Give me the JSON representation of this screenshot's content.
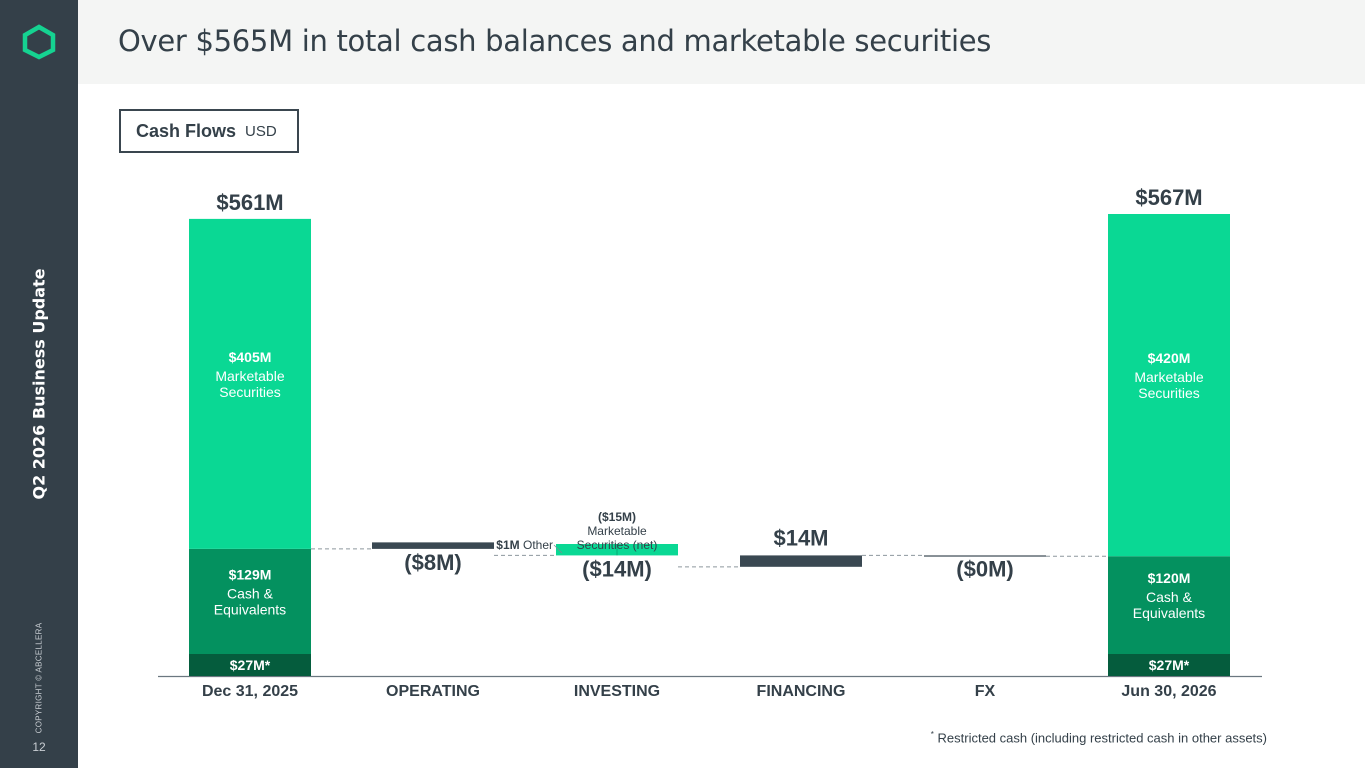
{
  "slide": {
    "title": "Over $565M in total cash balances and marketable securities",
    "sidebar_title": "Q2 2026 Business Update",
    "copyright": "COPYRIGHT © ABCELLERA",
    "page_number": "12",
    "footnote_mark": "*",
    "footnote": "Restricted cash (including restricted cash in other assets)"
  },
  "legend": {
    "label": "Cash Flows",
    "unit": "USD"
  },
  "colors": {
    "sidebar": "#344049",
    "header_bg": "#f4f5f4",
    "marketable": "#0ad894",
    "cash": "#04915f",
    "restricted": "#055c3d",
    "negative": "#3a4852",
    "logo": "#15d391",
    "text": "#344049"
  },
  "chart_data": {
    "type": "bar",
    "subtype": "waterfall",
    "title": "Cash Flows",
    "unit": "USD",
    "categories": [
      "Dec 31, 2025",
      "OPERATING",
      "INVESTING",
      "FINANCING",
      "FX",
      "Jun 30, 2026"
    ],
    "ylim": [
      0,
      600
    ],
    "totals": [
      {
        "category": "Dec 31, 2025",
        "total_label": "$561M",
        "total": 561,
        "segments": [
          {
            "name": "Restricted cash",
            "value": 27,
            "label": "$27M*",
            "sublabel": ""
          },
          {
            "name": "Cash & Equivalents",
            "value": 129,
            "label": "$129M",
            "sublabel": "Cash & Equivalents"
          },
          {
            "name": "Marketable Securities",
            "value": 405,
            "label": "$405M",
            "sublabel": "Marketable Securities"
          }
        ]
      },
      {
        "category": "Jun 30, 2026",
        "total_label": "$567M",
        "total": 567,
        "segments": [
          {
            "name": "Restricted cash",
            "value": 27,
            "label": "$27M*",
            "sublabel": ""
          },
          {
            "name": "Cash & Equivalents",
            "value": 120,
            "label": "$120M",
            "sublabel": "Cash & Equivalents"
          },
          {
            "name": "Marketable Securities",
            "value": 420,
            "label": "$420M",
            "sublabel": "Marketable Securities"
          }
        ]
      }
    ],
    "flows": [
      {
        "category": "OPERATING",
        "value": -8,
        "label": "($8M)",
        "start": 156
      },
      {
        "category": "INVESTING",
        "value": -14,
        "label": "($14M)",
        "start": 148,
        "components": [
          {
            "label": "$1M",
            "name": "Other",
            "value": 1
          },
          {
            "label": "($15M)",
            "name": "Marketable Securities (net)",
            "value": -15
          }
        ]
      },
      {
        "category": "FINANCING",
        "value": 14,
        "label": "$14M",
        "start": 134
      },
      {
        "category": "FX",
        "value": 0,
        "label": "($0M)",
        "start": 148
      }
    ]
  }
}
